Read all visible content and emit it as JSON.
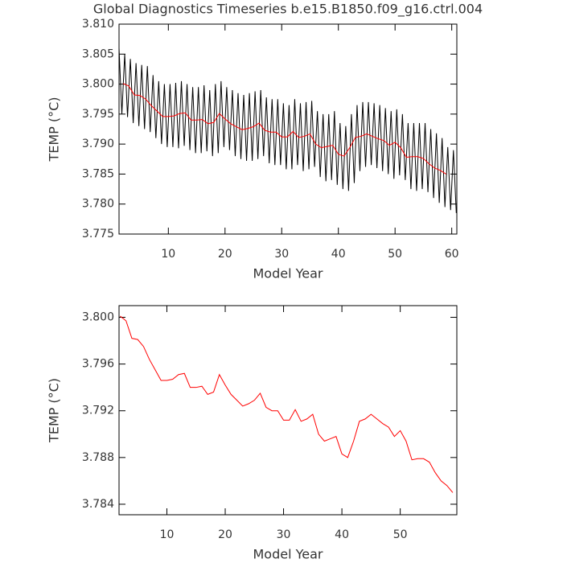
{
  "chart_data": [
    {
      "type": "line",
      "title": "Global Diagnostics Timeseries b.e15.B1850.f09_g16.ctrl.004",
      "xlabel": "Model Year",
      "ylabel": "TEMP (°C)",
      "xlim": [
        1.3,
        60.9
      ],
      "xticks": [
        10,
        20,
        30,
        40,
        50,
        60
      ],
      "ylim": [
        3.775,
        3.81
      ],
      "yticks": [
        3.775,
        {
          "value": 3.78,
          "label": "3.780"
        },
        3.785,
        {
          "value": 3.79,
          "label": "3.790"
        },
        3.795,
        {
          "value": 3.8,
          "label": "3.800"
        },
        3.805,
        {
          "value": 3.81,
          "label": "3.810"
        }
      ],
      "series": [
        {
          "color": "#000000",
          "x": [
            1.3,
            1.8,
            2.3,
            2.8,
            3.3,
            3.8,
            4.3,
            4.8,
            5.3,
            5.8,
            6.3,
            6.8,
            7.3,
            7.8,
            8.3,
            8.8,
            9.3,
            9.8,
            10.3,
            10.8,
            11.3,
            11.8,
            12.3,
            12.8,
            13.3,
            13.8,
            14.3,
            14.8,
            15.3,
            15.8,
            16.3,
            16.8,
            17.3,
            17.8,
            18.3,
            18.8,
            19.3,
            19.8,
            20.3,
            20.8,
            21.3,
            21.8,
            22.3,
            22.8,
            23.3,
            23.8,
            24.3,
            24.8,
            25.3,
            25.8,
            26.3,
            26.8,
            27.3,
            27.8,
            28.3,
            28.8,
            29.3,
            29.8,
            30.3,
            30.8,
            31.3,
            31.8,
            32.3,
            32.8,
            33.3,
            33.8,
            34.3,
            34.8,
            35.3,
            35.8,
            36.3,
            36.8,
            37.3,
            37.8,
            38.3,
            38.8,
            39.3,
            39.8,
            40.3,
            40.8,
            41.3,
            41.8,
            42.3,
            42.8,
            43.3,
            43.8,
            44.3,
            44.8,
            45.3,
            45.8,
            46.3,
            46.8,
            47.3,
            47.8,
            48.3,
            48.8,
            49.3,
            49.8,
            50.3,
            50.8,
            51.3,
            51.8,
            52.3,
            52.8,
            53.3,
            53.8,
            54.3,
            54.8,
            55.3,
            55.8,
            56.3,
            56.8,
            57.3,
            57.8,
            58.3,
            58.8,
            59.3,
            59.8,
            60.3,
            60.8
          ],
          "values": [
            3.806,
            3.795,
            3.805,
            3.7945,
            3.8042,
            3.7935,
            3.8035,
            3.793,
            3.8032,
            3.7925,
            3.803,
            3.792,
            3.8015,
            3.791,
            3.8005,
            3.79,
            3.8,
            3.7895,
            3.8,
            3.7895,
            3.8002,
            3.7893,
            3.8005,
            3.7897,
            3.8,
            3.789,
            3.7995,
            3.7885,
            3.7995,
            3.7885,
            3.7998,
            3.7888,
            3.799,
            3.788,
            3.8,
            3.7885,
            3.8005,
            3.7895,
            3.7995,
            3.789,
            3.799,
            3.788,
            3.7985,
            3.7875,
            3.7982,
            3.7872,
            3.7985,
            3.7872,
            3.7988,
            3.7875,
            3.799,
            3.788,
            3.7978,
            3.7868,
            3.7975,
            3.7865,
            3.7975,
            3.7865,
            3.7968,
            3.7858,
            3.7965,
            3.7858,
            3.7975,
            3.7865,
            3.7968,
            3.7855,
            3.797,
            3.7858,
            3.7972,
            3.7862,
            3.7955,
            3.7845,
            3.795,
            3.7838,
            3.795,
            3.784,
            3.7955,
            3.7832,
            3.7935,
            3.7825,
            3.793,
            3.7822,
            3.795,
            3.7835,
            3.7965,
            3.7855,
            3.797,
            3.7862,
            3.797,
            3.7865,
            3.7968,
            3.786,
            3.7965,
            3.7855,
            3.796,
            3.785,
            3.7955,
            3.7842,
            3.7958,
            3.7848,
            3.795,
            3.784,
            3.7935,
            3.7825,
            3.7935,
            3.7822,
            3.7935,
            3.7825,
            3.7935,
            3.782,
            3.7925,
            3.781,
            3.7918,
            3.7802,
            3.791,
            3.7795,
            3.7895,
            3.779,
            3.789,
            3.7785
          ]
        },
        {
          "color": "#ff0000",
          "x": [
            2,
            3,
            4,
            5,
            6,
            7,
            8,
            9,
            10,
            11,
            12,
            13,
            14,
            15,
            16,
            17,
            18,
            19,
            20,
            21,
            22,
            23,
            24,
            25,
            26,
            27,
            28,
            29,
            30,
            31,
            32,
            33,
            34,
            35,
            36,
            37,
            38,
            39,
            40,
            41,
            42,
            43,
            44,
            45,
            46,
            47,
            48,
            49,
            50,
            51,
            52,
            53,
            54,
            55,
            56,
            57,
            58,
            59
          ],
          "values": [
            3.8001,
            3.7997,
            3.7982,
            3.7981,
            3.7975,
            3.7964,
            3.7955,
            3.7946,
            3.7946,
            3.7947,
            3.7951,
            3.7952,
            3.794,
            3.794,
            3.7941,
            3.7934,
            3.7936,
            3.7951,
            3.7942,
            3.7934,
            3.7929,
            3.7924,
            3.7926,
            3.7929,
            3.7935,
            3.7923,
            3.792,
            3.792,
            3.7912,
            3.7912,
            3.7921,
            3.7911,
            3.7913,
            3.7917,
            3.79,
            3.7894,
            3.7896,
            3.7898,
            3.7883,
            3.788,
            3.7894,
            3.7911,
            3.7913,
            3.7917,
            3.7913,
            3.7909,
            3.7906,
            3.7898,
            3.7903,
            3.7894,
            3.7878,
            3.7879,
            3.7879,
            3.7876,
            3.7867,
            3.786,
            3.7856,
            3.785
          ]
        }
      ]
    },
    {
      "type": "line",
      "xlabel": "Model Year",
      "ylabel": "TEMP (°C)",
      "xlim": [
        1.8,
        59.7
      ],
      "xticks": [
        10,
        20,
        30,
        40,
        50
      ],
      "ylim": [
        3.7831,
        3.801
      ],
      "yticks": [
        3.784,
        3.788,
        3.792,
        3.796,
        {
          "value": 3.8,
          "label": "3.800"
        }
      ],
      "series": [
        {
          "color": "#ff0000",
          "x": [
            2,
            3,
            4,
            5,
            6,
            7,
            8,
            9,
            10,
            11,
            12,
            13,
            14,
            15,
            16,
            17,
            18,
            19,
            20,
            21,
            22,
            23,
            24,
            25,
            26,
            27,
            28,
            29,
            30,
            31,
            32,
            33,
            34,
            35,
            36,
            37,
            38,
            39,
            40,
            41,
            42,
            43,
            44,
            45,
            46,
            47,
            48,
            49,
            50,
            51,
            52,
            53,
            54,
            55,
            56,
            57,
            58,
            59
          ],
          "values": [
            3.8001,
            3.7997,
            3.7982,
            3.7981,
            3.7975,
            3.7964,
            3.7955,
            3.7946,
            3.7946,
            3.7947,
            3.7951,
            3.7952,
            3.794,
            3.794,
            3.7941,
            3.7934,
            3.7936,
            3.7951,
            3.7942,
            3.7934,
            3.7929,
            3.7924,
            3.7926,
            3.7929,
            3.7935,
            3.7923,
            3.792,
            3.792,
            3.7912,
            3.7912,
            3.7921,
            3.7911,
            3.7913,
            3.7917,
            3.79,
            3.7894,
            3.7896,
            3.7898,
            3.7883,
            3.788,
            3.7894,
            3.7911,
            3.7913,
            3.7917,
            3.7913,
            3.7909,
            3.7906,
            3.7898,
            3.7903,
            3.7894,
            3.7878,
            3.7879,
            3.7879,
            3.7876,
            3.7867,
            3.786,
            3.7856,
            3.785
          ]
        }
      ]
    }
  ]
}
